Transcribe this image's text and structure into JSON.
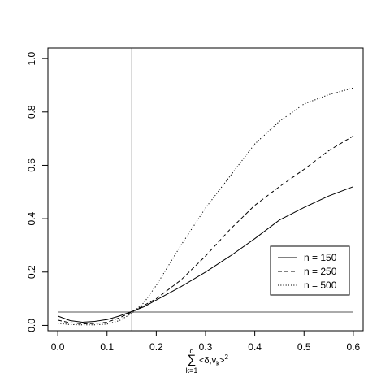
{
  "chart_data": {
    "type": "line",
    "title": "",
    "xlabel": {
      "sum_symbol": "∑",
      "upper_limit": "d",
      "lower_limit": "k=1",
      "body_prefix": "<δ,v",
      "body_subscript": "k",
      "body_suffix": ">",
      "exponent": "2"
    },
    "ylabel": "",
    "xlim": [
      -0.02,
      0.62
    ],
    "ylim": [
      -0.02,
      1.04
    ],
    "xticks": [
      0.0,
      0.1,
      0.2,
      0.3,
      0.4,
      0.5,
      0.6
    ],
    "xtick_labels": [
      "0.0",
      "0.1",
      "0.2",
      "0.3",
      "0.4",
      "0.5",
      "0.6"
    ],
    "yticks": [
      0.0,
      0.2,
      0.4,
      0.6,
      0.8,
      1.0
    ],
    "ytick_labels": [
      "0.0",
      "0.2",
      "0.4",
      "0.6",
      "0.8",
      "1.0"
    ],
    "grid": false,
    "legend_position": "bottom-right",
    "reference_lines": {
      "horizontal_y": 0.05,
      "vertical_x": 0.15,
      "vertical_color": "#aaaaaa",
      "horizontal_color": "#555555"
    },
    "series": [
      {
        "name": "n = 150",
        "dash": "solid",
        "x": [
          0.0,
          0.025,
          0.05,
          0.075,
          0.1,
          0.125,
          0.15,
          0.175,
          0.2,
          0.25,
          0.3,
          0.35,
          0.4,
          0.45,
          0.5,
          0.55,
          0.6
        ],
        "y": [
          0.035,
          0.018,
          0.012,
          0.015,
          0.022,
          0.035,
          0.052,
          0.07,
          0.095,
          0.145,
          0.2,
          0.26,
          0.325,
          0.395,
          0.442,
          0.485,
          0.52
        ]
      },
      {
        "name": "n = 250",
        "dash": "dashed",
        "x": [
          0.0,
          0.025,
          0.05,
          0.075,
          0.1,
          0.125,
          0.15,
          0.175,
          0.2,
          0.25,
          0.3,
          0.35,
          0.4,
          0.45,
          0.5,
          0.55,
          0.6
        ],
        "y": [
          0.02,
          0.01,
          0.006,
          0.007,
          0.012,
          0.028,
          0.05,
          0.075,
          0.1,
          0.17,
          0.26,
          0.36,
          0.45,
          0.52,
          0.585,
          0.655,
          0.71
        ]
      },
      {
        "name": "n = 500",
        "dash": "dotted",
        "x": [
          0.0,
          0.025,
          0.05,
          0.075,
          0.1,
          0.125,
          0.15,
          0.175,
          0.2,
          0.25,
          0.3,
          0.35,
          0.4,
          0.45,
          0.5,
          0.55,
          0.6
        ],
        "y": [
          0.008,
          0.003,
          0.002,
          0.002,
          0.005,
          0.018,
          0.045,
          0.085,
          0.15,
          0.3,
          0.44,
          0.56,
          0.68,
          0.765,
          0.83,
          0.865,
          0.89
        ]
      }
    ]
  }
}
